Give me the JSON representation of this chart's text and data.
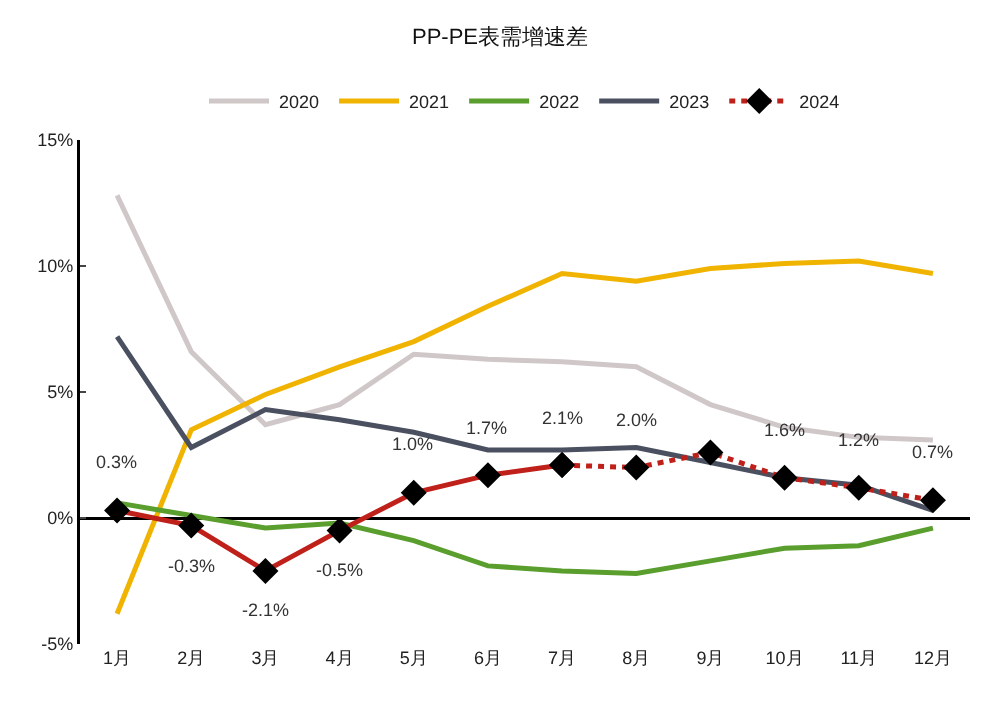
{
  "chart_data": {
    "type": "line",
    "title": "PP-PE表需增速差",
    "categories": [
      "1月",
      "2月",
      "3月",
      "4月",
      "5月",
      "6月",
      "7月",
      "8月",
      "9月",
      "10月",
      "11月",
      "12月"
    ],
    "ylim": [
      -5,
      15
    ],
    "yticks": [
      {
        "value": -5,
        "label": "-5%"
      },
      {
        "value": 0,
        "label": "0%"
      },
      {
        "value": 5,
        "label": "5%"
      },
      {
        "value": 10,
        "label": "10%"
      },
      {
        "value": 15,
        "label": "15%"
      }
    ],
    "legend": "top",
    "marker": "none",
    "line_style": "solid",
    "series": [
      {
        "name": "2020",
        "color": "#d0c8c8",
        "values": [
          12.8,
          6.6,
          3.7,
          4.5,
          6.5,
          6.3,
          6.2,
          6.0,
          4.5,
          3.6,
          3.2,
          3.1
        ]
      },
      {
        "name": "2021",
        "color": "#f0b400",
        "values": [
          -3.8,
          3.5,
          4.9,
          6.0,
          7.0,
          8.4,
          9.7,
          9.4,
          9.9,
          10.1,
          10.2,
          9.7
        ]
      },
      {
        "name": "2022",
        "color": "#5a9e2e",
        "values": [
          0.6,
          0.1,
          -0.4,
          -0.2,
          -0.9,
          -1.9,
          -2.1,
          -2.2,
          -1.7,
          -1.2,
          -1.1,
          -0.4
        ]
      },
      {
        "name": "2023",
        "color": "#4a5060",
        "values": [
          7.2,
          2.8,
          4.3,
          3.9,
          3.4,
          2.7,
          2.7,
          2.8,
          2.2,
          1.6,
          1.3,
          0.3
        ]
      },
      {
        "color": "#c0201a",
        "marker": "diamond",
        "values": [
          0.3,
          -0.3,
          -2.1,
          -0.5,
          1.0,
          1.7,
          2.1,
          null,
          null,
          null,
          null,
          null
        ],
        "value_labels": [
          "0.3%",
          "-0.3%",
          "-2.1%",
          "-0.5%",
          "1.0%",
          "1.7%",
          "2.1%",
          null,
          null,
          null,
          null,
          null
        ]
      },
      {
        "name": "2024",
        "color": "#c0201a",
        "marker": "diamond",
        "line_style": "dotted",
        "values": [
          null,
          null,
          null,
          null,
          null,
          null,
          2.1,
          2.0,
          2.6,
          1.6,
          1.2,
          0.7
        ],
        "value_labels": [
          null,
          null,
          null,
          null,
          null,
          null,
          null,
          "2.0%",
          null,
          "1.6%",
          "1.2%",
          "0.7%"
        ]
      }
    ]
  }
}
